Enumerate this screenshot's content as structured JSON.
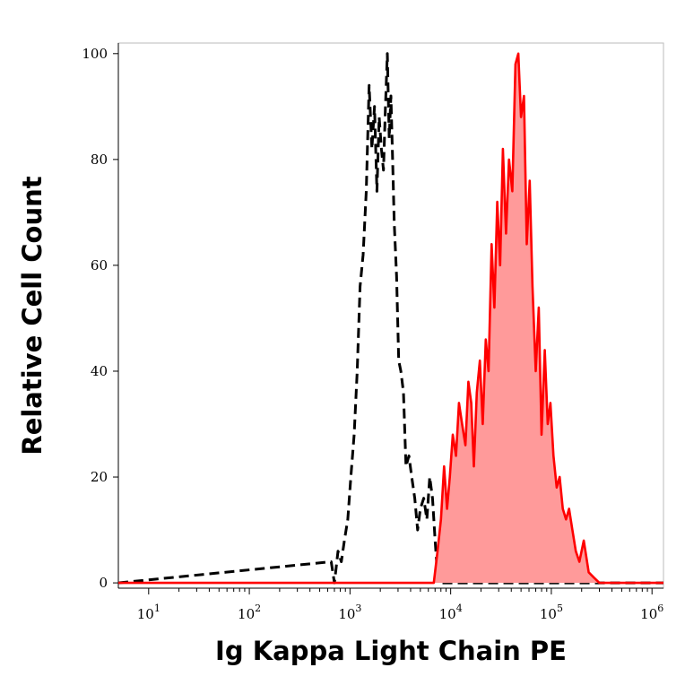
{
  "chart_data": {
    "type": "area",
    "xlabel": "Ig Kappa Light Chain PE",
    "ylabel": "Relative Cell Count",
    "xscale": "log",
    "xlim": [
      5,
      1300000
    ],
    "ylim": [
      -1,
      102
    ],
    "y_ticks": [
      {
        "value": 0,
        "label": "0"
      },
      {
        "value": 20,
        "label": "20"
      },
      {
        "value": 40,
        "label": "40"
      },
      {
        "value": 60,
        "label": "60"
      },
      {
        "value": 80,
        "label": "80"
      },
      {
        "value": 100,
        "label": "100"
      }
    ],
    "x_ticks": [
      {
        "value": 10,
        "base": "10",
        "exp": "1"
      },
      {
        "value": 100,
        "base": "10",
        "exp": "2"
      },
      {
        "value": 1000,
        "base": "10",
        "exp": "3"
      },
      {
        "value": 10000,
        "base": "10",
        "exp": "4"
      },
      {
        "value": 100000,
        "base": "10",
        "exp": "5"
      },
      {
        "value": 1000000,
        "base": "10",
        "exp": "6"
      }
    ],
    "grid": false,
    "legend": "none",
    "series": [
      {
        "style": "dashed-outline",
        "color": "#000000",
        "x": [
          5,
          650,
          700,
          760,
          820,
          880,
          950,
          1020,
          1100,
          1180,
          1260,
          1350,
          1450,
          1550,
          1650,
          1750,
          1850,
          1950,
          2050,
          2150,
          2250,
          2350,
          2450,
          2550,
          2650,
          2750,
          2900,
          3050,
          3200,
          3400,
          3600,
          3850,
          4100,
          4400,
          4700,
          5000,
          5400,
          5800,
          6200,
          6600,
          7000,
          7500,
          1300000
        ],
        "y": [
          0,
          4,
          0,
          6,
          4,
          8,
          12,
          20,
          28,
          40,
          56,
          62,
          74,
          94,
          82,
          90,
          74,
          88,
          82,
          78,
          90,
          100,
          84,
          92,
          80,
          68,
          58,
          42,
          40,
          36,
          22,
          24,
          20,
          16,
          10,
          14,
          16,
          12,
          20,
          16,
          8,
          0,
          0
        ]
      },
      {
        "style": "filled",
        "color": "#ff0000",
        "fill": "#ff9a9a",
        "x": [
          5,
          6800,
          7400,
          8000,
          8600,
          9200,
          9800,
          10500,
          11300,
          12100,
          13000,
          14000,
          15000,
          16000,
          17000,
          18200,
          19500,
          20800,
          22300,
          23800,
          25500,
          27200,
          29000,
          31000,
          33000,
          35500,
          38000,
          41000,
          44000,
          47000,
          50000,
          53500,
          57000,
          61000,
          65000,
          70000,
          75000,
          80000,
          86000,
          92000,
          98000,
          105000,
          113000,
          121000,
          130000,
          140000,
          150000,
          162000,
          175000,
          190000,
          210000,
          235000,
          265000,
          300000,
          340000,
          1300000
        ],
        "y": [
          0,
          0,
          6,
          12,
          22,
          14,
          20,
          28,
          24,
          34,
          30,
          26,
          38,
          34,
          22,
          36,
          42,
          30,
          46,
          40,
          64,
          52,
          72,
          60,
          82,
          66,
          80,
          74,
          98,
          100,
          88,
          92,
          64,
          76,
          56,
          40,
          52,
          28,
          44,
          30,
          34,
          24,
          18,
          20,
          14,
          12,
          14,
          10,
          6,
          4,
          8,
          2,
          1,
          0,
          0,
          0
        ]
      }
    ]
  }
}
